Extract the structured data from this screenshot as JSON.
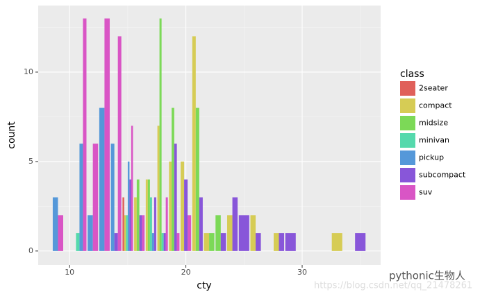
{
  "chart_data": {
    "type": "bar",
    "x_label": "cty",
    "y_label": "count",
    "legend_title": "class",
    "x": [
      9,
      11,
      12,
      13,
      14,
      15,
      16,
      17,
      18,
      19,
      20,
      21,
      22,
      23,
      24,
      25,
      26,
      28,
      29,
      33,
      35
    ],
    "series": [
      {
        "name": "2seater",
        "color": "#e0605a",
        "values": [
          null,
          null,
          null,
          null,
          null,
          3,
          null,
          null,
          null,
          null,
          null,
          null,
          null,
          null,
          null,
          null,
          null,
          null,
          null,
          null,
          null
        ]
      },
      {
        "name": "compact",
        "color": "#d6cc55",
        "values": [
          null,
          null,
          null,
          null,
          null,
          2,
          3,
          4,
          7,
          5,
          5,
          12,
          1,
          null,
          2,
          null,
          2,
          1,
          null,
          1,
          null
        ]
      },
      {
        "name": "midsize",
        "color": "#7cd957",
        "values": [
          null,
          null,
          null,
          null,
          null,
          null,
          4,
          4,
          13,
          8,
          null,
          8,
          1,
          2,
          null,
          null,
          null,
          null,
          null,
          null,
          null
        ]
      },
      {
        "name": "minivan",
        "color": "#55d9ac",
        "values": [
          null,
          1,
          null,
          null,
          null,
          2,
          null,
          3,
          1,
          null,
          null,
          null,
          null,
          null,
          null,
          null,
          null,
          null,
          null,
          null,
          null
        ]
      },
      {
        "name": "pickup",
        "color": "#5598d9",
        "values": [
          3,
          6,
          2,
          8,
          6,
          5,
          null,
          1,
          null,
          null,
          null,
          null,
          null,
          null,
          null,
          null,
          null,
          null,
          null,
          null,
          null
        ]
      },
      {
        "name": "subcompact",
        "color": "#8856d9",
        "values": [
          null,
          null,
          null,
          null,
          1,
          4,
          2,
          3,
          1,
          6,
          4,
          3,
          null,
          1,
          3,
          2,
          1,
          1,
          1,
          null,
          1
        ]
      },
      {
        "name": "suv",
        "color": "#d955c5",
        "values": [
          2,
          13,
          6,
          13,
          12,
          7,
          2,
          null,
          3,
          1,
          2,
          null,
          null,
          null,
          null,
          null,
          null,
          null,
          null,
          null,
          null
        ]
      }
    ],
    "xlim": [
      7.3,
      36.75
    ],
    "ylim": [
      -0.78,
      13.72
    ],
    "xticks": [
      10,
      20,
      30
    ],
    "yticks": [
      0,
      5,
      10
    ],
    "grid": true,
    "legend_position": "right",
    "annotations": [
      "pythonic生物人",
      "https://blog.csdn.net/qq_21478261"
    ]
  }
}
